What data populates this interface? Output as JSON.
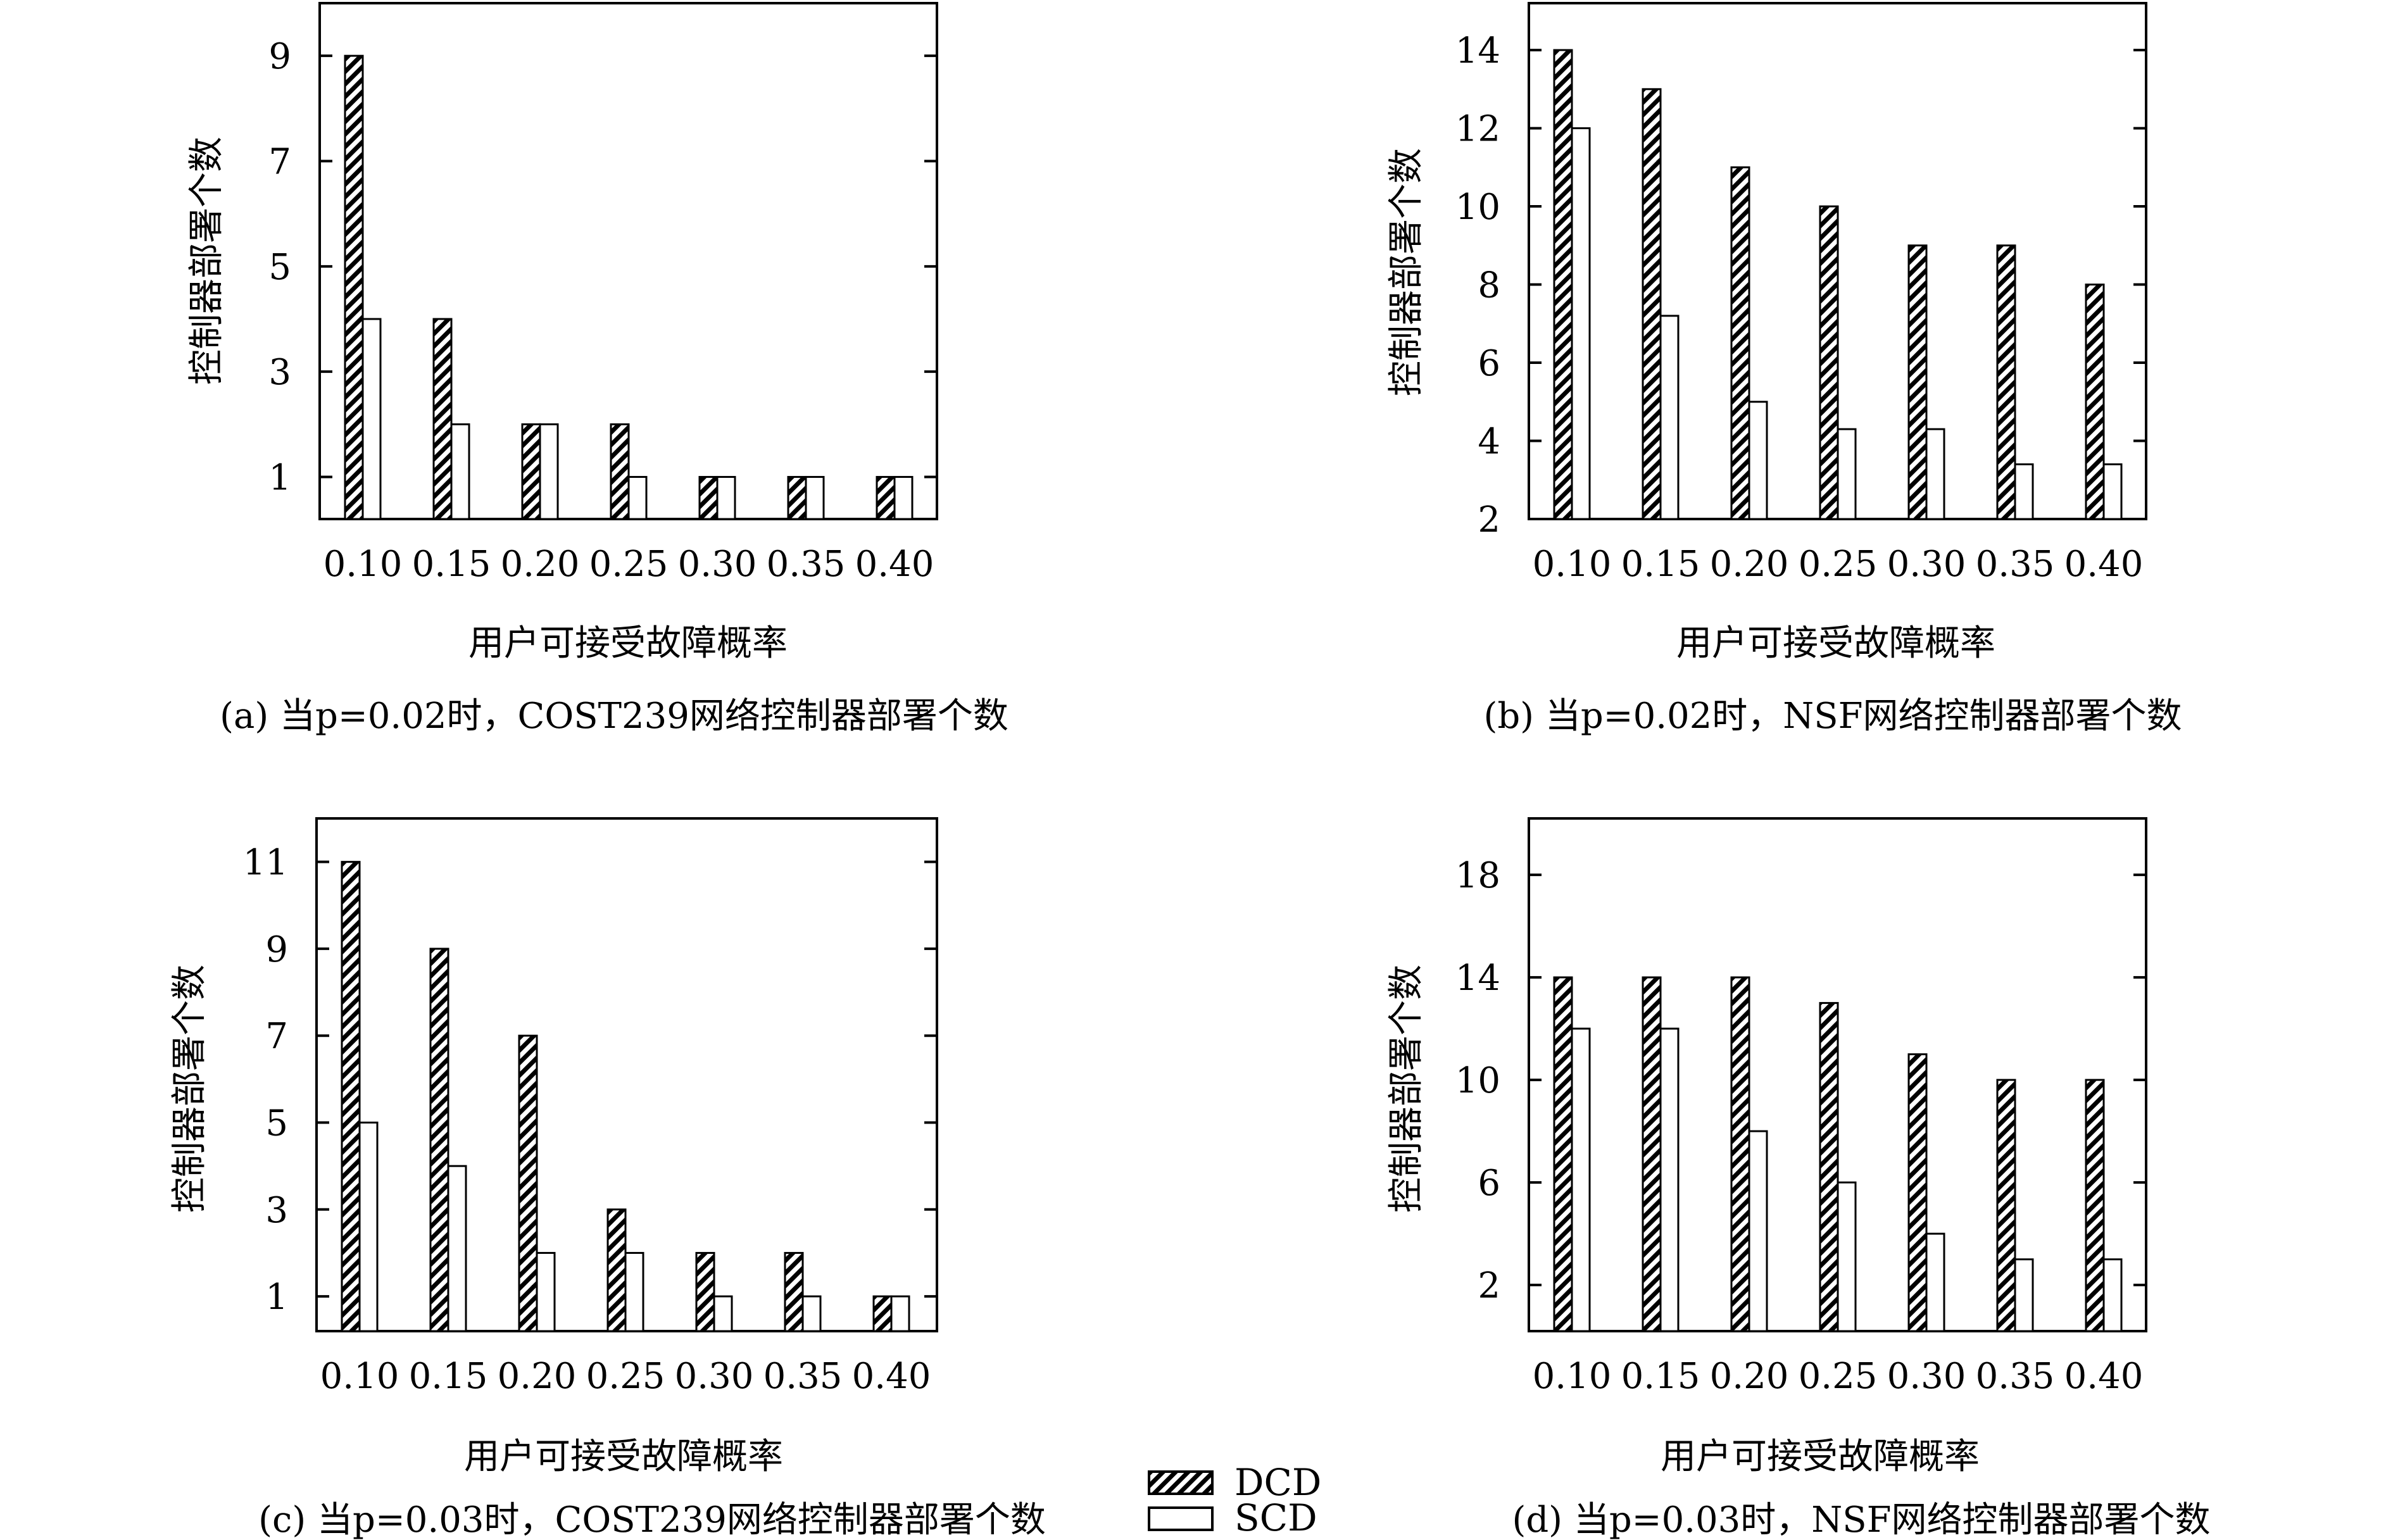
{
  "figure": {
    "legend": {
      "placement": "bottom-center",
      "entries": [
        "DCD",
        "SCD"
      ]
    }
  },
  "chart_data": [
    {
      "type": "bar",
      "caption": "(a) 当p=0.02时，COST239网络控制器部署个数",
      "xlabel": "用户可接受故障概率",
      "ylabel": "控制器部署个数",
      "categories": [
        "0.10",
        "0.15",
        "0.20",
        "0.25",
        "0.30",
        "0.35",
        "0.40"
      ],
      "series": [
        {
          "name": "DCD",
          "values": [
            9,
            4,
            2,
            2,
            1,
            1,
            1
          ]
        },
        {
          "name": "SCD",
          "values": [
            4,
            2,
            2,
            1,
            1,
            1,
            1
          ]
        }
      ],
      "ylim": [
        0.2,
        10.0
      ],
      "yticks": [
        1,
        3,
        5,
        7,
        9
      ]
    },
    {
      "type": "bar",
      "caption": "(b) 当p=0.02时，NSF网络控制器部署个数",
      "xlabel": "用户可接受故障概率",
      "ylabel": "控制器部署个数",
      "categories": [
        "0.10",
        "0.15",
        "0.20",
        "0.25",
        "0.30",
        "0.35",
        "0.40"
      ],
      "series": [
        {
          "name": "DCD",
          "values": [
            14,
            13,
            11,
            10,
            9,
            9,
            8
          ]
        },
        {
          "name": "SCD",
          "values": [
            12,
            7.2,
            5,
            4.3,
            4.3,
            3.4,
            3.4
          ]
        }
      ],
      "ylim": [
        2,
        15.2
      ],
      "yticks": [
        2,
        4,
        6,
        8,
        10,
        12,
        14
      ]
    },
    {
      "type": "bar",
      "caption": "(c) 当p=0.03时，COST239网络控制器部署个数",
      "xlabel": "用户可接受故障概率",
      "ylabel": "控制器部署个数",
      "categories": [
        "0.10",
        "0.15",
        "0.20",
        "0.25",
        "0.30",
        "0.35",
        "0.40"
      ],
      "series": [
        {
          "name": "DCD",
          "values": [
            11,
            9,
            7,
            3,
            2,
            2,
            1
          ]
        },
        {
          "name": "SCD",
          "values": [
            5,
            4,
            2,
            2,
            1,
            1,
            1
          ]
        }
      ],
      "ylim": [
        0.2,
        12.0
      ],
      "yticks": [
        1,
        3,
        5,
        7,
        9,
        11
      ]
    },
    {
      "type": "bar",
      "caption": "(d) 当p=0.03时，NSF网络控制器部署个数",
      "xlabel": "用户可接受故障概率",
      "ylabel": "控制器部署个数",
      "categories": [
        "0.10",
        "0.15",
        "0.20",
        "0.25",
        "0.30",
        "0.35",
        "0.40"
      ],
      "series": [
        {
          "name": "DCD",
          "values": [
            14,
            14,
            14,
            13,
            11,
            10,
            10
          ]
        },
        {
          "name": "SCD",
          "values": [
            12,
            12,
            8,
            6,
            4,
            3,
            3
          ]
        }
      ],
      "ylim": [
        0.2,
        20.2
      ],
      "yticks": [
        2,
        6,
        10,
        14,
        18
      ]
    }
  ]
}
